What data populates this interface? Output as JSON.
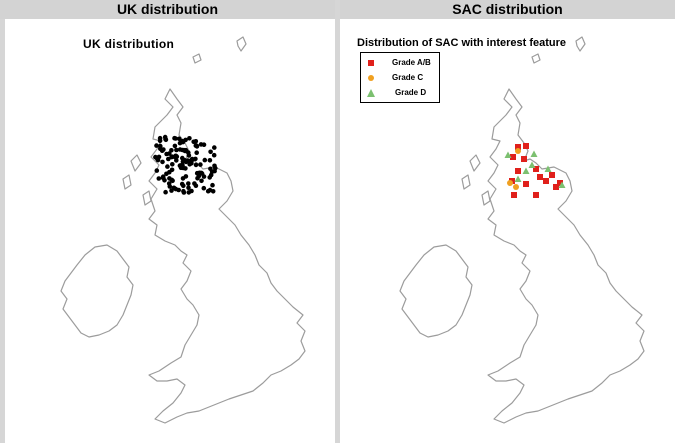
{
  "panels": {
    "left": {
      "header": "UK distribution",
      "map_title": "UK distribution"
    },
    "right": {
      "header": "SAC distribution",
      "map_title": "Distribution of SAC with interest feature",
      "legend": [
        {
          "label": "Grade A/B",
          "shape": "square",
          "color": "#e0201b"
        },
        {
          "label": "Grade C",
          "shape": "circle",
          "color": "#f0a020"
        },
        {
          "label": "Grade D",
          "shape": "triangle",
          "color": "#7cc070"
        }
      ]
    }
  },
  "colors": {
    "coast": "#9c9c9c",
    "dot": "#000000",
    "header_bg": "#d3d3d3"
  },
  "icons": [
    "uk-outline-map",
    "record-dot",
    "grade-ab-square-icon",
    "grade-c-circle-icon",
    "grade-d-triangle-icon"
  ]
}
